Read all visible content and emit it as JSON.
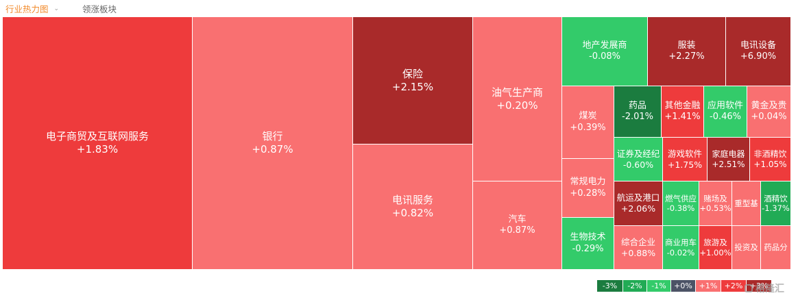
{
  "tabs": {
    "industry_heatmap": "行业热力图",
    "leading_sectors": "领涨板块"
  },
  "colors": {
    "up_light": "#f97071",
    "up_mid": "#ee3b3c",
    "up_dark": "#a92a2a",
    "down_light": "#33cb6a",
    "down_mid": "#21ab55",
    "down_dark": "#1b7c3f",
    "flat": "#4c5366"
  },
  "legend": [
    {
      "label": "-3%",
      "color": "#1b7c3f"
    },
    {
      "label": "-2%",
      "color": "#21ab55"
    },
    {
      "label": "-1%",
      "color": "#33cb6a"
    },
    {
      "label": "+0%",
      "color": "#4c5366"
    },
    {
      "label": "+1%",
      "color": "#f97071"
    },
    {
      "label": "+2%",
      "color": "#ee3b3c"
    },
    {
      "label": "+3%",
      "color": "#a92a2a"
    }
  ],
  "watermark": "格隆汇",
  "tiles": [
    {
      "name": "电子商贸及互联网服务",
      "change": "+1.83%",
      "color": "#ee3b3c"
    },
    {
      "name": "银行",
      "change": "+0.87%",
      "color": "#f97071"
    },
    {
      "name": "保险",
      "change": "+2.15%",
      "color": "#a92a2a"
    },
    {
      "name": "电讯服务",
      "change": "+0.82%",
      "color": "#f97071"
    },
    {
      "name": "油气生产商",
      "change": "+0.20%",
      "color": "#f97071"
    },
    {
      "name": "汽车",
      "change": "+0.87%",
      "color": "#f97071"
    },
    {
      "name": "地产发展商",
      "change": "-0.08%",
      "color": "#33cb6a"
    },
    {
      "name": "服装",
      "change": "+2.27%",
      "color": "#a92a2a"
    },
    {
      "name": "电讯设备",
      "change": "+6.90%",
      "color": "#a92a2a"
    },
    {
      "name": "煤炭",
      "change": "+0.39%",
      "color": "#f97071"
    },
    {
      "name": "常规电力",
      "change": "+0.28%",
      "color": "#f97071"
    },
    {
      "name": "生物技术",
      "change": "-0.29%",
      "color": "#33cb6a"
    },
    {
      "name": "药品",
      "change": "-2.01%",
      "color": "#1b7c3f"
    },
    {
      "name": "其他金融",
      "change": "+1.41%",
      "color": "#ee3b3c"
    },
    {
      "name": "应用软件",
      "change": "-0.46%",
      "color": "#33cb6a"
    },
    {
      "name": "黄金及贵",
      "change": "+0.04%",
      "color": "#f97071"
    },
    {
      "name": "证券及经纪",
      "change": "-0.60%",
      "color": "#33cb6a"
    },
    {
      "name": "游戏软件",
      "change": "+1.75%",
      "color": "#ee3b3c"
    },
    {
      "name": "家庭电器",
      "change": "+2.51%",
      "color": "#a92a2a"
    },
    {
      "name": "非酒精饮",
      "change": "+1.05%",
      "color": "#ee3b3c"
    },
    {
      "name": "航运及港口",
      "change": "+2.06%",
      "color": "#a92a2a"
    },
    {
      "name": "燃气供应",
      "change": "-0.38%",
      "color": "#33cb6a"
    },
    {
      "name": "赌场及",
      "change": "+0.53%",
      "color": "#f97071"
    },
    {
      "name": "重型基",
      "change": "",
      "color": "#f97071"
    },
    {
      "name": "酒精饮",
      "change": "-1.37%",
      "color": "#21ab55"
    },
    {
      "name": "综合企业",
      "change": "+0.88%",
      "color": "#f97071"
    },
    {
      "name": "商业用车",
      "change": "-0.02%",
      "color": "#33cb6a"
    },
    {
      "name": "旅游及",
      "change": "+1.00%",
      "color": "#ee3b3c"
    },
    {
      "name": "投资及",
      "change": "",
      "color": "#f97071"
    },
    {
      "name": "药品分",
      "change": "",
      "color": "#f97071"
    }
  ]
}
